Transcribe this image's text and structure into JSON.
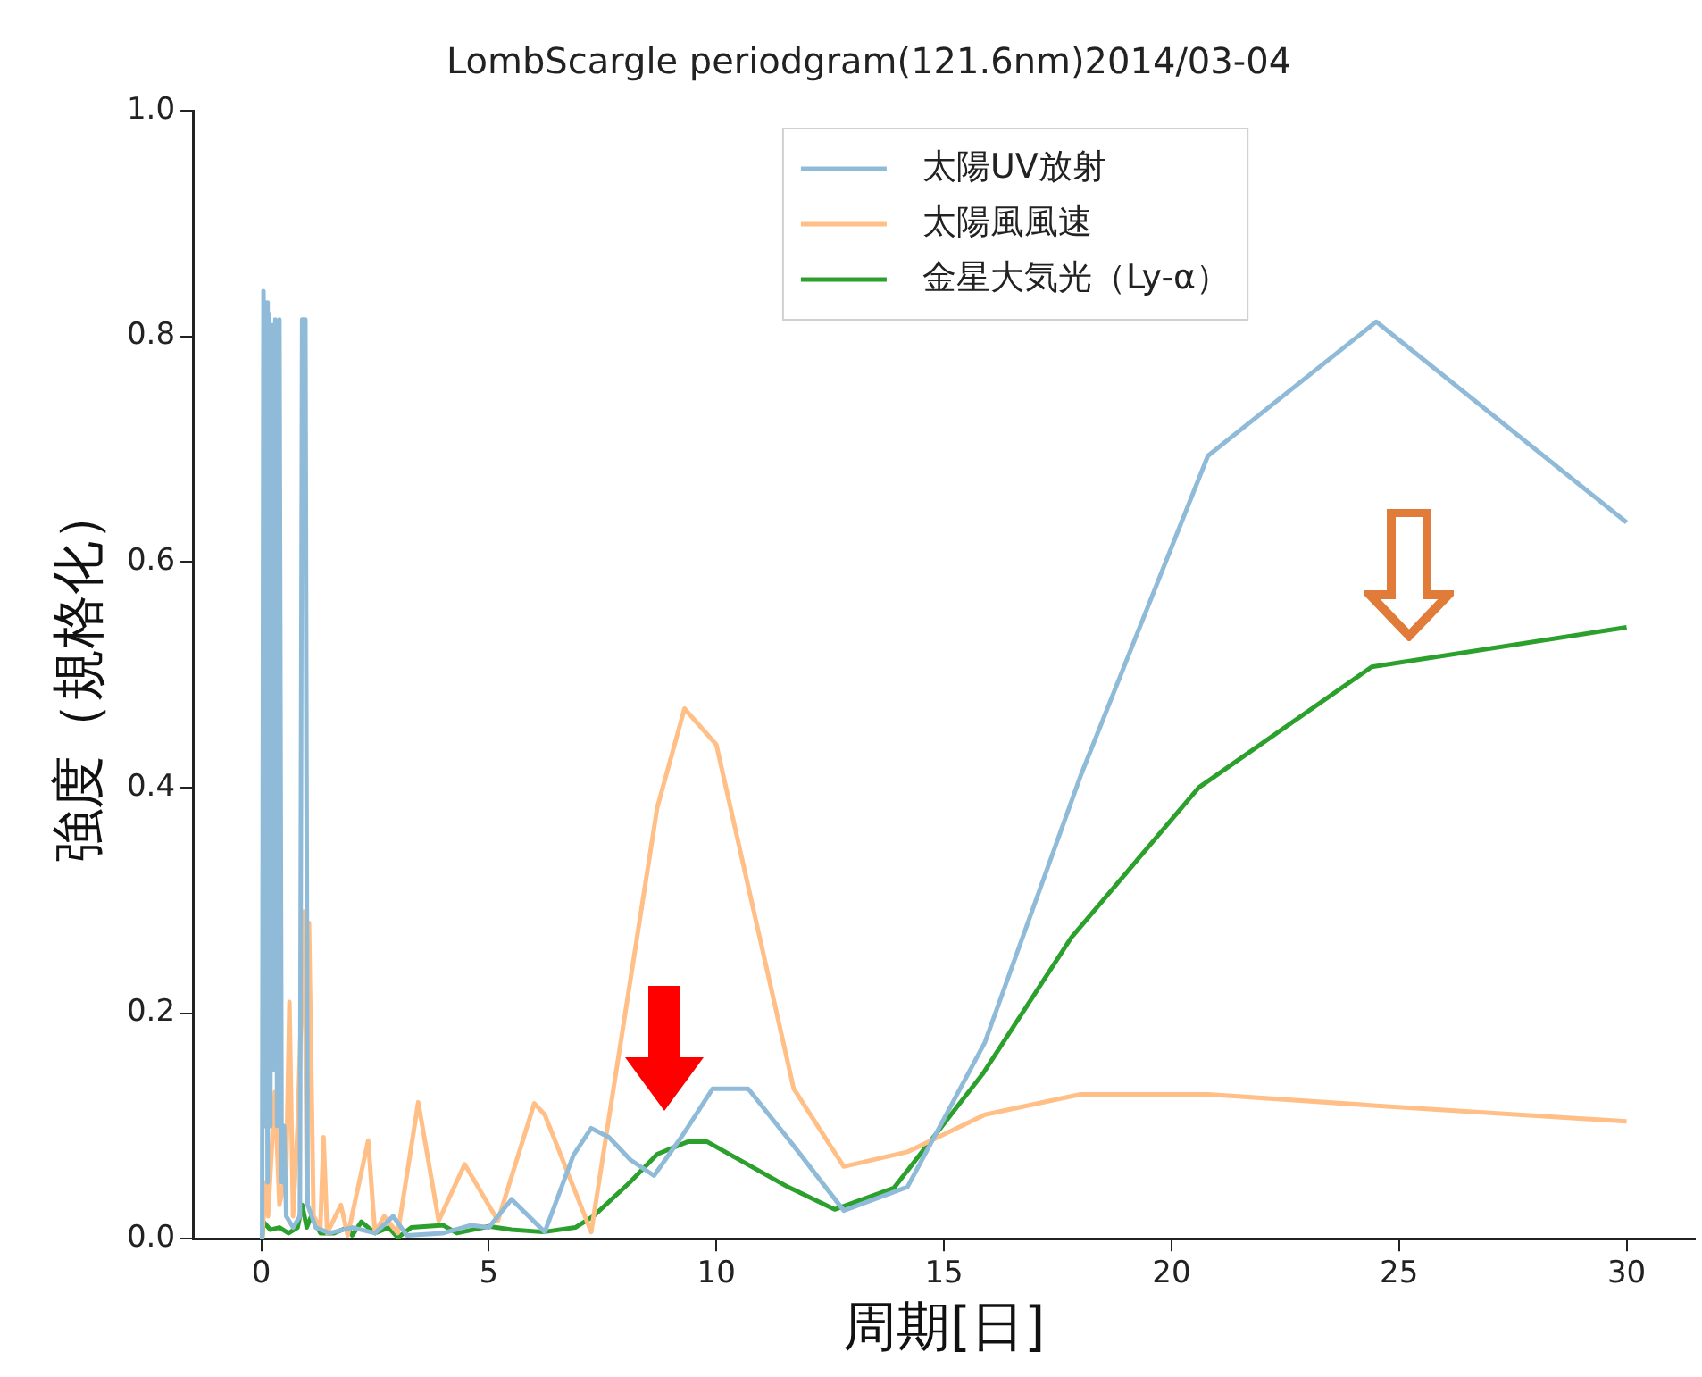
{
  "chart_data": {
    "type": "line",
    "title": "LombScargle periodgram(121.6nm)2014/03-04",
    "xlabel": "周期[日]",
    "ylabel": "強度（規格化）",
    "xlim": [
      -1.5,
      31.5
    ],
    "xticks": [
      0,
      5,
      10,
      15,
      20,
      25,
      30
    ],
    "ylim": [
      0,
      1
    ],
    "yticks": [
      {
        "value": 0,
        "label": "0.0"
      },
      {
        "value": 0.2,
        "label": "0.2"
      },
      {
        "value": 0.4,
        "label": "0.4"
      },
      {
        "value": 0.6,
        "label": "0.6"
      },
      {
        "value": 0.8,
        "label": "0.8"
      },
      {
        "value": 1,
        "label": "1.0"
      }
    ],
    "grid": false,
    "legend": "top",
    "marker": "none",
    "line_style": "solid",
    "series": [
      {
        "name": "太陽UV放射",
        "color": "#8fbbd9",
        "x": [
          0.02,
          0.05,
          0.08,
          0.11,
          0.14,
          0.17,
          0.2,
          0.24,
          0.28,
          0.31,
          0.35,
          0.4,
          0.45,
          0.5,
          0.55,
          0.7,
          0.85,
          0.9,
          0.97,
          1.02,
          1.2,
          1.5,
          2.0,
          2.5,
          2.9,
          3.2,
          4.0,
          4.6,
          5.0,
          5.5,
          6.23,
          6.86,
          7.25,
          7.64,
          8.11,
          8.63,
          9.23,
          9.92,
          10.7,
          11.65,
          12.8,
          14.2,
          15.9,
          18,
          20.8,
          24.5,
          30
        ],
        "values": [
          0.0,
          0.84,
          0.1,
          0.83,
          0.05,
          0.82,
          0.1,
          0.81,
          0.15,
          0.815,
          0.1,
          0.815,
          0.05,
          0.1,
          0.02,
          0.01,
          0.02,
          0.815,
          0.815,
          0.03,
          0.01,
          0.005,
          0.01,
          0.005,
          0.02,
          0.003,
          0.005,
          0.012,
          0.01,
          0.035,
          0.006,
          0.074,
          0.098,
          0.09,
          0.07,
          0.056,
          0.09,
          0.133,
          0.133,
          0.085,
          0.025,
          0.046,
          0.174,
          0.41,
          0.694,
          0.813,
          0.635
        ]
      },
      {
        "name": "太陽風風速",
        "color": "#ffbf86",
        "x": [
          0.02,
          0.1,
          0.15,
          0.3,
          0.4,
          0.55,
          0.62,
          0.7,
          0.8,
          0.95,
          1.0,
          1.05,
          1.15,
          1.3,
          1.37,
          1.45,
          1.75,
          1.9,
          2.35,
          2.5,
          2.7,
          3.0,
          3.45,
          3.9,
          4.47,
          5.2,
          6.0,
          6.23,
          7.25,
          8.7,
          9.3,
          10.0,
          11.7,
          12.8,
          14.2,
          15.9,
          18,
          20.8,
          24.5,
          30
        ],
        "values": [
          0.0,
          0.05,
          0.02,
          0.13,
          0.03,
          0.06,
          0.21,
          0.02,
          0.1,
          0.29,
          0.05,
          0.28,
          0.02,
          0.01,
          0.09,
          0.005,
          0.03,
          0.003,
          0.087,
          0.005,
          0.02,
          0.005,
          0.121,
          0.016,
          0.066,
          0.016,
          0.12,
          0.11,
          0.006,
          0.382,
          0.47,
          0.438,
          0.133,
          0.064,
          0.077,
          0.11,
          0.128,
          0.128,
          0.118,
          0.104
        ]
      },
      {
        "name": "金星大気光（Ly-α）",
        "color": "#2ca02c",
        "x": [
          0.02,
          0.05,
          0.2,
          0.4,
          0.6,
          0.8,
          0.9,
          1.0,
          1.1,
          1.3,
          1.6,
          1.9,
          2.0,
          2.2,
          2.5,
          2.8,
          3.0,
          3.3,
          4.0,
          4.3,
          5.0,
          5.5,
          6.2,
          6.9,
          7.3,
          8.1,
          8.7,
          9.37,
          9.8,
          11.57,
          12.6,
          13.9,
          15.85,
          17.8,
          20.6,
          24.4,
          30
        ],
        "values": [
          0.0,
          0.015,
          0.008,
          0.01,
          0.005,
          0.01,
          0.03,
          0.01,
          0.02,
          0.005,
          0.005,
          0.01,
          0.003,
          0.015,
          0.005,
          0.01,
          0.001,
          0.01,
          0.012,
          0.005,
          0.011,
          0.008,
          0.006,
          0.01,
          0.02,
          0.05,
          0.075,
          0.086,
          0.086,
          0.046,
          0.026,
          0.045,
          0.146,
          0.267,
          0.4,
          0.507,
          0.542
        ]
      }
    ]
  }
}
